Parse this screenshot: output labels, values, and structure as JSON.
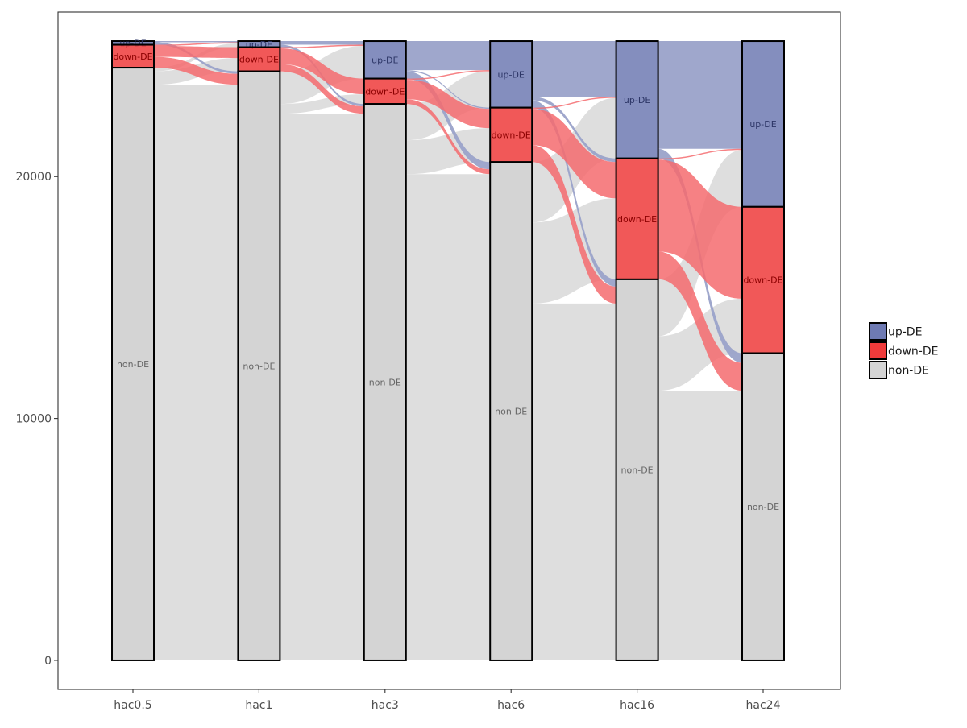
{
  "chart_data": {
    "type": "alluvial",
    "categories": [
      "hac0.5",
      "hac1",
      "hac3",
      "hac6",
      "hac16",
      "hac24"
    ],
    "ylim": [
      -1200,
      26800
    ],
    "yticks": [
      0,
      10000,
      20000
    ],
    "ytick_labels": [
      "0",
      "10000",
      "20000"
    ],
    "xlabel": "",
    "ylabel": "",
    "grid": false,
    "legend_position": "right",
    "colors": {
      "up-DE": "#6e7ab3",
      "down-DE": "#ef3b3b",
      "non-DE": "#d4d4d4"
    },
    "legend": [
      {
        "key": "up-DE",
        "label": "up-DE"
      },
      {
        "key": "down-DE",
        "label": "down-DE"
      },
      {
        "key": "non-DE",
        "label": "non-DE"
      }
    ],
    "stacks": [
      {
        "x": "hac0.5",
        "segments": [
          {
            "key": "up-DE",
            "label": "up-DE",
            "value": 150
          },
          {
            "key": "down-DE",
            "label": "down-DE",
            "value": 950
          },
          {
            "key": "non-DE",
            "label": "non-DE",
            "value": 24500
          }
        ]
      },
      {
        "x": "hac1",
        "segments": [
          {
            "key": "up-DE",
            "label": "up-DE",
            "value": 250
          },
          {
            "key": "down-DE",
            "label": "down-DE",
            "value": 1000
          },
          {
            "key": "non-DE",
            "label": "non-DE",
            "value": 24350
          }
        ]
      },
      {
        "x": "hac3",
        "segments": [
          {
            "key": "up-DE",
            "label": "up-DE",
            "value": 1550
          },
          {
            "key": "down-DE",
            "label": "down-DE",
            "value": 1050
          },
          {
            "key": "non-DE",
            "label": "non-DE",
            "value": 23000
          }
        ]
      },
      {
        "x": "hac6",
        "segments": [
          {
            "key": "up-DE",
            "label": "up-DE",
            "value": 2750
          },
          {
            "key": "down-DE",
            "label": "down-DE",
            "value": 2250
          },
          {
            "key": "non-DE",
            "label": "non-DE",
            "value": 20600
          }
        ]
      },
      {
        "x": "hac16",
        "segments": [
          {
            "key": "up-DE",
            "label": "up-DE",
            "value": 4850
          },
          {
            "key": "down-DE",
            "label": "down-DE",
            "value": 5000
          },
          {
            "key": "non-DE",
            "label": "non-DE",
            "value": 15750
          }
        ]
      },
      {
        "x": "hac24",
        "segments": [
          {
            "key": "up-DE",
            "label": "up-DE",
            "value": 6850
          },
          {
            "key": "down-DE",
            "label": "down-DE",
            "value": 6050
          },
          {
            "key": "non-DE",
            "label": "non-DE",
            "value": 12700
          }
        ]
      }
    ],
    "flows": [
      [
        {
          "from": "up-DE",
          "to": "up-DE",
          "value": 50
        },
        {
          "from": "up-DE",
          "to": "non-DE",
          "value": 100
        },
        {
          "from": "down-DE",
          "to": "up-DE",
          "value": 50
        },
        {
          "from": "down-DE",
          "to": "down-DE",
          "value": 450
        },
        {
          "from": "down-DE",
          "to": "non-DE",
          "value": 450
        },
        {
          "from": "non-DE",
          "to": "up-DE",
          "value": 150
        },
        {
          "from": "non-DE",
          "to": "down-DE",
          "value": 550
        },
        {
          "from": "non-DE",
          "to": "non-DE",
          "value": 23800
        }
      ],
      [
        {
          "from": "up-DE",
          "to": "up-DE",
          "value": 150
        },
        {
          "from": "up-DE",
          "to": "non-DE",
          "value": 100
        },
        {
          "from": "down-DE",
          "to": "up-DE",
          "value": 50
        },
        {
          "from": "down-DE",
          "to": "down-DE",
          "value": 650
        },
        {
          "from": "down-DE",
          "to": "non-DE",
          "value": 300
        },
        {
          "from": "non-DE",
          "to": "up-DE",
          "value": 1350
        },
        {
          "from": "non-DE",
          "to": "down-DE",
          "value": 400
        },
        {
          "from": "non-DE",
          "to": "non-DE",
          "value": 22600
        }
      ],
      [
        {
          "from": "up-DE",
          "to": "up-DE",
          "value": 1200
        },
        {
          "from": "up-DE",
          "to": "down-DE",
          "value": 50
        },
        {
          "from": "up-DE",
          "to": "non-DE",
          "value": 300
        },
        {
          "from": "down-DE",
          "to": "up-DE",
          "value": 50
        },
        {
          "from": "down-DE",
          "to": "down-DE",
          "value": 800
        },
        {
          "from": "down-DE",
          "to": "non-DE",
          "value": 200
        },
        {
          "from": "non-DE",
          "to": "up-DE",
          "value": 1500
        },
        {
          "from": "non-DE",
          "to": "down-DE",
          "value": 1400
        },
        {
          "from": "non-DE",
          "to": "non-DE",
          "value": 20100
        }
      ],
      [
        {
          "from": "up-DE",
          "to": "up-DE",
          "value": 2300
        },
        {
          "from": "up-DE",
          "to": "down-DE",
          "value": 150
        },
        {
          "from": "up-DE",
          "to": "non-DE",
          "value": 300
        },
        {
          "from": "down-DE",
          "to": "up-DE",
          "value": 50
        },
        {
          "from": "down-DE",
          "to": "down-DE",
          "value": 1500
        },
        {
          "from": "down-DE",
          "to": "non-DE",
          "value": 700
        },
        {
          "from": "non-DE",
          "to": "up-DE",
          "value": 2500
        },
        {
          "from": "non-DE",
          "to": "down-DE",
          "value": 3350
        },
        {
          "from": "non-DE",
          "to": "non-DE",
          "value": 14750
        }
      ],
      [
        {
          "from": "up-DE",
          "to": "up-DE",
          "value": 4450
        },
        {
          "from": "up-DE",
          "to": "non-DE",
          "value": 400
        },
        {
          "from": "down-DE",
          "to": "up-DE",
          "value": 50
        },
        {
          "from": "down-DE",
          "to": "down-DE",
          "value": 3800
        },
        {
          "from": "down-DE",
          "to": "non-DE",
          "value": 1150
        },
        {
          "from": "non-DE",
          "to": "up-DE",
          "value": 2350
        },
        {
          "from": "non-DE",
          "to": "down-DE",
          "value": 2250
        },
        {
          "from": "non-DE",
          "to": "non-DE",
          "value": 11150
        }
      ]
    ]
  }
}
